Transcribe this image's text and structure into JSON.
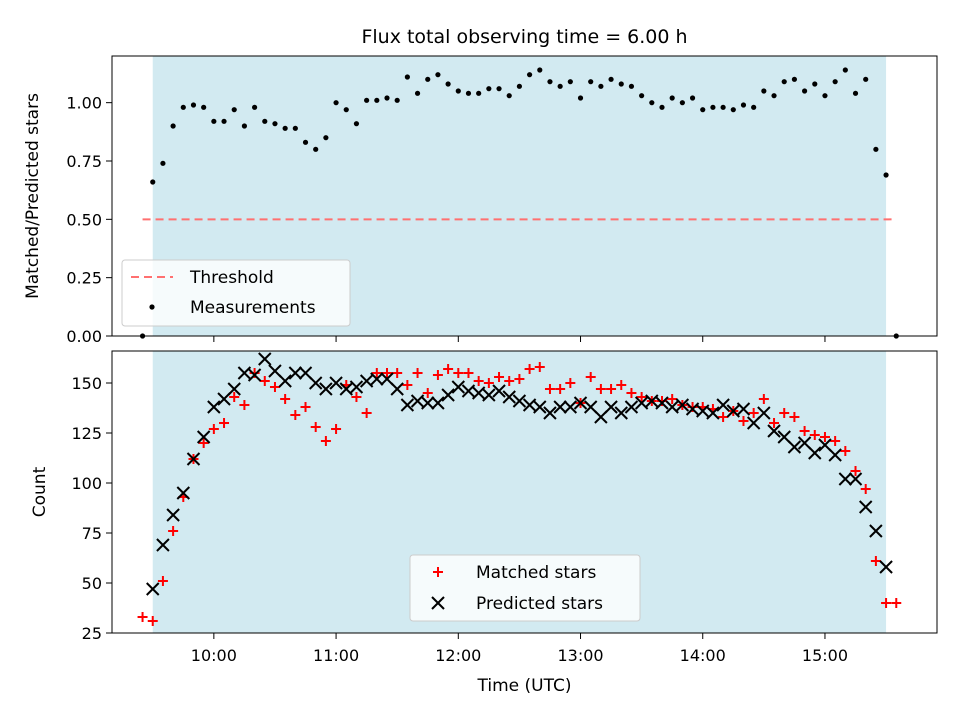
{
  "colors": {
    "background": "#ffffff",
    "observing_band": "#add8e6",
    "threshold": "#ff7070",
    "measurements": "#000000",
    "matched": "#ff0000",
    "predicted": "#000000"
  },
  "chart_data": [
    {
      "type": "scatter",
      "title": "Flux total observing time = 6.00 h",
      "xlabel": "",
      "ylabel": "Matched/Predicted stars",
      "xlim": [
        "09:10",
        "15:55"
      ],
      "ylim": [
        0,
        1.2
      ],
      "x_axis_type": "time",
      "x_ticks": [
        "10:00",
        "11:00",
        "12:00",
        "13:00",
        "14:00",
        "15:00"
      ],
      "x_tick_labels_shown": false,
      "y_ticks": [
        0.0,
        0.25,
        0.5,
        0.75,
        1.0
      ],
      "y_tick_labels": [
        "0.00",
        "0.25",
        "0.50",
        "0.75",
        "1.00"
      ],
      "grid": false,
      "legend_placement": "lower-left",
      "shaded_span": [
        "09:30",
        "15:30"
      ],
      "threshold_line": {
        "name": "Threshold",
        "y": 0.5,
        "x_range": [
          "09:25",
          "15:35"
        ],
        "style": "dashed"
      },
      "series": [
        {
          "name": "Measurements",
          "marker": "dot",
          "x": [
            "09:25",
            "09:30",
            "09:35",
            "09:40",
            "09:45",
            "09:50",
            "09:55",
            "10:00",
            "10:05",
            "10:10",
            "10:15",
            "10:20",
            "10:25",
            "10:30",
            "10:35",
            "10:40",
            "10:45",
            "10:50",
            "10:55",
            "11:00",
            "11:05",
            "11:10",
            "11:15",
            "11:20",
            "11:25",
            "11:30",
            "11:35",
            "11:40",
            "11:45",
            "11:50",
            "11:55",
            "12:00",
            "12:05",
            "12:10",
            "12:15",
            "12:20",
            "12:25",
            "12:30",
            "12:35",
            "12:40",
            "12:45",
            "12:50",
            "12:55",
            "13:00",
            "13:05",
            "13:10",
            "13:15",
            "13:20",
            "13:25",
            "13:30",
            "13:35",
            "13:40",
            "13:45",
            "13:50",
            "13:55",
            "14:00",
            "14:05",
            "14:10",
            "14:15",
            "14:20",
            "14:25",
            "14:30",
            "14:35",
            "14:40",
            "14:45",
            "14:50",
            "14:55",
            "15:00",
            "15:05",
            "15:10",
            "15:15",
            "15:20",
            "15:25",
            "15:30",
            "15:35"
          ],
          "values": [
            0.0,
            0.66,
            0.74,
            0.9,
            0.98,
            0.99,
            0.98,
            0.92,
            0.92,
            0.97,
            0.9,
            0.98,
            0.92,
            0.91,
            0.89,
            0.89,
            0.83,
            0.8,
            0.85,
            1.0,
            0.97,
            0.91,
            1.01,
            1.01,
            1.02,
            1.01,
            1.11,
            1.04,
            1.1,
            1.12,
            1.08,
            1.05,
            1.04,
            1.04,
            1.06,
            1.06,
            1.03,
            1.07,
            1.12,
            1.14,
            1.09,
            1.07,
            1.09,
            1.02,
            1.09,
            1.07,
            1.1,
            1.08,
            1.07,
            1.03,
            1.0,
            0.98,
            1.02,
            1.0,
            1.02,
            0.97,
            0.98,
            0.98,
            0.97,
            0.99,
            0.98,
            1.05,
            1.03,
            1.09,
            1.1,
            1.05,
            1.08,
            1.03,
            1.09,
            1.14,
            1.04,
            1.1,
            0.8,
            0.69,
            0.0
          ]
        }
      ]
    },
    {
      "type": "scatter",
      "title": "",
      "xlabel": "Time (UTC)",
      "ylabel": "Count",
      "xlim": [
        "09:10",
        "15:55"
      ],
      "ylim": [
        25,
        166
      ],
      "x_axis_type": "time",
      "x_ticks": [
        "10:00",
        "11:00",
        "12:00",
        "13:00",
        "14:00",
        "15:00"
      ],
      "x_tick_labels": [
        "10:00",
        "11:00",
        "12:00",
        "13:00",
        "14:00",
        "15:00"
      ],
      "y_ticks": [
        25,
        50,
        75,
        100,
        125,
        150
      ],
      "y_tick_labels": [
        "25",
        "50",
        "75",
        "100",
        "125",
        "150"
      ],
      "grid": false,
      "legend_placement": "lower-center",
      "shaded_span": [
        "09:30",
        "15:30"
      ],
      "series": [
        {
          "name": "Matched stars",
          "marker": "plus",
          "x": [
            "09:25",
            "09:30",
            "09:35",
            "09:40",
            "09:45",
            "09:50",
            "09:55",
            "10:00",
            "10:05",
            "10:10",
            "10:15",
            "10:20",
            "10:25",
            "10:30",
            "10:35",
            "10:40",
            "10:45",
            "10:50",
            "10:55",
            "11:00",
            "11:05",
            "11:10",
            "11:15",
            "11:20",
            "11:25",
            "11:30",
            "11:35",
            "11:40",
            "11:45",
            "11:50",
            "11:55",
            "12:00",
            "12:05",
            "12:10",
            "12:15",
            "12:20",
            "12:25",
            "12:30",
            "12:35",
            "12:40",
            "12:45",
            "12:50",
            "12:55",
            "13:00",
            "13:05",
            "13:10",
            "13:15",
            "13:20",
            "13:25",
            "13:30",
            "13:35",
            "13:40",
            "13:45",
            "13:50",
            "13:55",
            "14:00",
            "14:05",
            "14:10",
            "14:15",
            "14:20",
            "14:25",
            "14:30",
            "14:35",
            "14:40",
            "14:45",
            "14:50",
            "14:55",
            "15:00",
            "15:05",
            "15:10",
            "15:15",
            "15:20",
            "15:25",
            "15:30",
            "15:35"
          ],
          "values": [
            33,
            31,
            51,
            76,
            93,
            112,
            120,
            127,
            130,
            143,
            139,
            155,
            151,
            148,
            142,
            134,
            138,
            128,
            121,
            127,
            149,
            143,
            135,
            155,
            155,
            155,
            149,
            155,
            145,
            154,
            157,
            155,
            155,
            151,
            150,
            153,
            151,
            152,
            157,
            158,
            147,
            147,
            150,
            140,
            153,
            147,
            147,
            149,
            145,
            143,
            141,
            141,
            142,
            139,
            138,
            138,
            137,
            133,
            136,
            131,
            135,
            142,
            130,
            135,
            133,
            126,
            124,
            123,
            121,
            116,
            106,
            97,
            61,
            40,
            40
          ]
        },
        {
          "name": "Predicted stars",
          "marker": "x",
          "x": [
            "09:30",
            "09:35",
            "09:40",
            "09:45",
            "09:50",
            "09:55",
            "10:00",
            "10:05",
            "10:10",
            "10:15",
            "10:20",
            "10:25",
            "10:30",
            "10:35",
            "10:40",
            "10:45",
            "10:50",
            "10:55",
            "11:00",
            "11:05",
            "11:10",
            "11:15",
            "11:20",
            "11:25",
            "11:30",
            "11:35",
            "11:40",
            "11:45",
            "11:50",
            "11:55",
            "12:00",
            "12:05",
            "12:10",
            "12:15",
            "12:20",
            "12:25",
            "12:30",
            "12:35",
            "12:40",
            "12:45",
            "12:50",
            "12:55",
            "13:00",
            "13:05",
            "13:10",
            "13:15",
            "13:20",
            "13:25",
            "13:30",
            "13:35",
            "13:40",
            "13:45",
            "13:50",
            "13:55",
            "14:00",
            "14:05",
            "14:10",
            "14:15",
            "14:20",
            "14:25",
            "14:30",
            "14:35",
            "14:40",
            "14:45",
            "14:50",
            "14:55",
            "15:00",
            "15:05",
            "15:10",
            "15:15",
            "15:20",
            "15:25",
            "15:30"
          ],
          "values": [
            47,
            69,
            84,
            95,
            112,
            123,
            138,
            142,
            147,
            155,
            154,
            162,
            156,
            151,
            155,
            155,
            150,
            147,
            150,
            147,
            148,
            151,
            152,
            152,
            147,
            139,
            141,
            140,
            140,
            144,
            148,
            146,
            145,
            144,
            146,
            143,
            141,
            139,
            138,
            135,
            138,
            138,
            140,
            138,
            133,
            138,
            135,
            138,
            140,
            141,
            140,
            138,
            139,
            137,
            136,
            135,
            139,
            136,
            137,
            130,
            135,
            126,
            123,
            118,
            120,
            115,
            119,
            114,
            102,
            102,
            88,
            76,
            58
          ]
        }
      ]
    }
  ]
}
